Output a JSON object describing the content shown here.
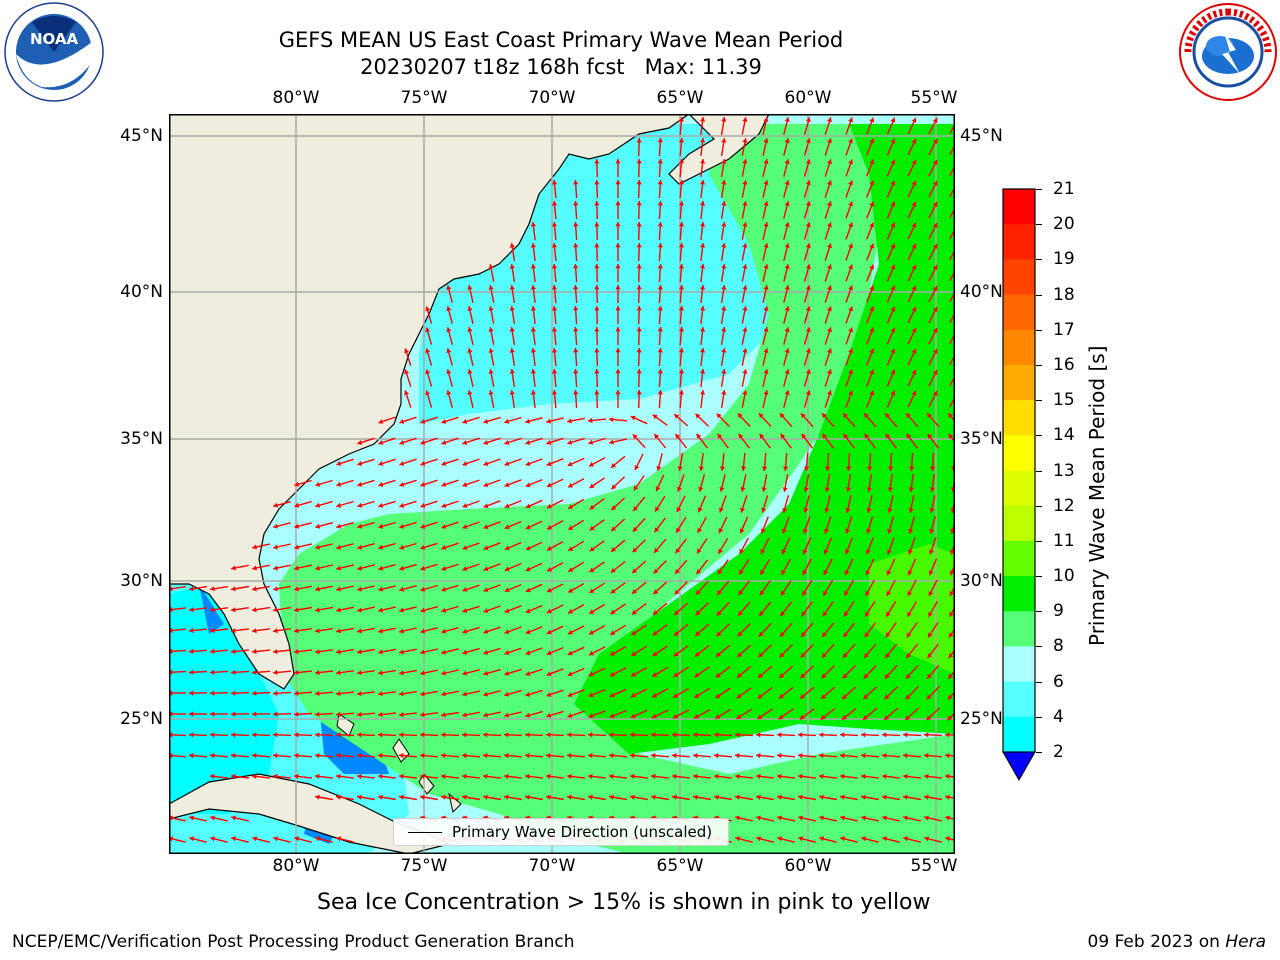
{
  "title_line1": "GEFS MEAN US East Coast Primary Wave Mean Period",
  "title_line2": "20230207 t18z 168h fcst   Max: 11.39",
  "lon_ticks": [
    "80°W",
    "75°W",
    "70°W",
    "65°W",
    "60°W",
    "55°W"
  ],
  "lat_ticks": [
    "45°N",
    "40°N",
    "35°N",
    "30°N",
    "25°N"
  ],
  "colorbar": {
    "label": "Primary Wave Mean Period [s]",
    "ticks": [
      "21",
      "20",
      "19",
      "18",
      "17",
      "16",
      "15",
      "14",
      "13",
      "12",
      "11",
      "10",
      "9",
      "8",
      "6",
      "4",
      "2"
    ],
    "colors": [
      "#ff0000",
      "#ff2200",
      "#ff4400",
      "#ff6600",
      "#ff8800",
      "#ffaa00",
      "#ffdd00",
      "#ffff00",
      "#ddff00",
      "#bbff00",
      "#66ff00",
      "#00ee00",
      "#55ff77",
      "#aaffff",
      "#55ffff",
      "#00ffff",
      "#0088ff"
    ],
    "extend_color": "#0000ff"
  },
  "legend_label": "Primary Wave Direction (unscaled)",
  "note": "Sea Ice Concentration > 15% is shown in pink to yellow",
  "footer_left": "NCEP/EMC/Verification Post Processing Product Generation Branch",
  "footer_right_prefix": "09 Feb 2023 on ",
  "footer_right_host": "Hera",
  "colors": {
    "land": "#efedde",
    "grid": "#aaaaaa",
    "arrows": "#ff0000",
    "coast": "#000000"
  },
  "logos": {
    "left": "NOAA",
    "right": "NATIONAL WEATHER SERVICE"
  }
}
